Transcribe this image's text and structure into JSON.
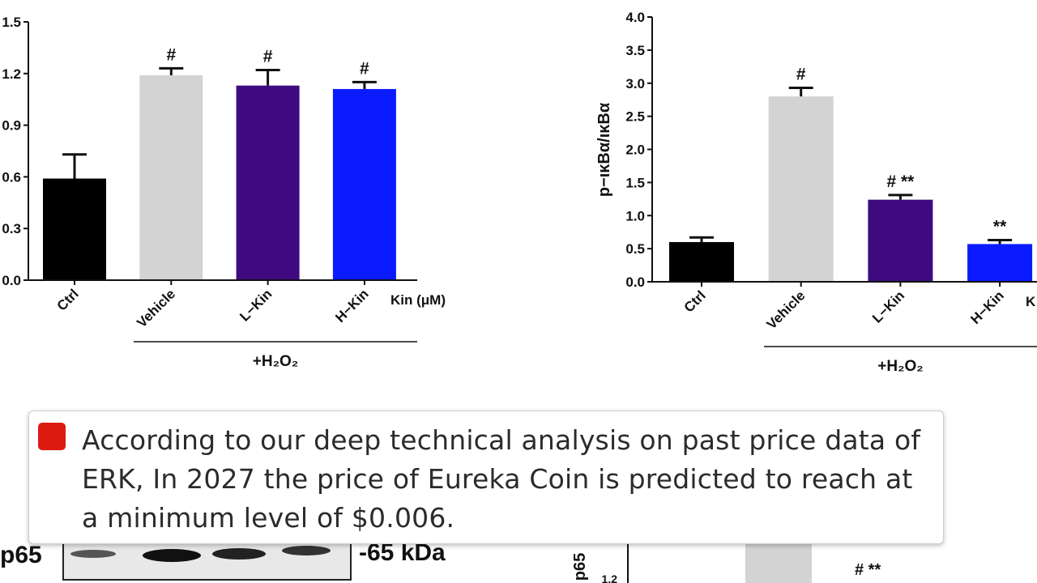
{
  "chart_data": [
    {
      "type": "bar",
      "categories": [
        "Ctrl",
        "Vehicle",
        "L−Kin",
        "H−Kin"
      ],
      "values": [
        0.59,
        1.19,
        1.13,
        1.11
      ],
      "errors": [
        0.14,
        0.04,
        0.09,
        0.04
      ],
      "annotations": [
        null,
        "#",
        "#",
        "#"
      ],
      "colors": [
        "#000000",
        "#d3d3d3",
        "#3f0a80",
        "#0a1bff"
      ],
      "x_label": "Kin (μM)",
      "group_label": "+H₂O₂",
      "ylim": [
        0,
        1.5
      ],
      "yticks": [
        {
          "value": 0,
          "label": "0.0"
        },
        {
          "value": 0.3,
          "label": "0.3"
        },
        {
          "value": 0.6,
          "label": "0.6"
        },
        {
          "value": 0.9,
          "label": "0.9"
        },
        {
          "value": 1.2,
          "label": "1.2"
        },
        {
          "value": 1.5,
          "label": "1.5"
        }
      ]
    },
    {
      "type": "bar",
      "y_label": "p−ικBα/ικBα",
      "categories": [
        "Ctrl",
        "Vehicle",
        "L−Kin",
        "H−Kin"
      ],
      "values": [
        0.6,
        2.8,
        1.24,
        0.57
      ],
      "errors": [
        0.07,
        0.13,
        0.07,
        0.06
      ],
      "annotations": [
        null,
        "#",
        "# **",
        "**"
      ],
      "colors": [
        "#000000",
        "#d3d3d3",
        "#3f0a80",
        "#0a1bff"
      ],
      "x_label": "K",
      "group_label": "+H₂O₂",
      "ylim": [
        0,
        4
      ],
      "yticks": [
        {
          "value": 0,
          "label": "0.0"
        },
        {
          "value": 0.5,
          "label": "0.5"
        },
        {
          "value": 1,
          "label": "1.0"
        },
        {
          "value": 1.5,
          "label": "1.5"
        },
        {
          "value": 2,
          "label": "2.0"
        },
        {
          "value": 2.5,
          "label": "2.5"
        },
        {
          "value": 3,
          "label": "3.0"
        },
        {
          "value": 3.5,
          "label": "3.5"
        },
        {
          "value": 4,
          "label": "4.0"
        }
      ]
    }
  ],
  "caption": "According to our deep technical analysis on past price data of ERK, In 2027 the price of Eureka Coin is predicted to reach at a minimum level of $0.006.",
  "lower_figure": {
    "blot_label": "p65",
    "kda_label": "-65 kDa",
    "y_label": "p65",
    "partial_tick": "1.2",
    "annotation": "# **"
  }
}
